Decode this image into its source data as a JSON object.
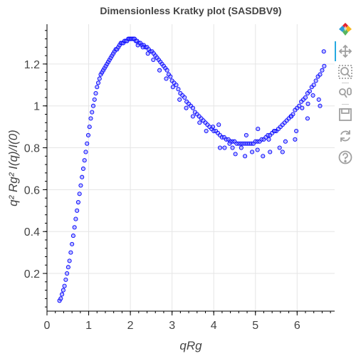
{
  "chart_data": {
    "type": "scatter",
    "title": "Dimensionless Kratky plot (SASDBV9)",
    "xlabel": "qRg",
    "ylabel": "q² Rg² I(q)/I(0)",
    "xlim": [
      0,
      6.9
    ],
    "ylim": [
      0.02,
      1.39
    ],
    "x_ticks": [
      0,
      1,
      2,
      3,
      4,
      5,
      6
    ],
    "x_tick_labels": [
      "0",
      "1",
      "2",
      "3",
      "4",
      "5",
      "6"
    ],
    "y_ticks": [
      0.2,
      0.4,
      0.6,
      0.8,
      1.0,
      1.2
    ],
    "y_tick_labels": [
      "0.2",
      "0.4",
      "0.6",
      "0.8",
      "1",
      "1.2"
    ],
    "grid": true,
    "marker": "circle",
    "marker_fill": "#7f7fff",
    "marker_stroke": "#0000ff",
    "series": [
      {
        "x": [
          0.3,
          0.33,
          0.36,
          0.39,
          0.42,
          0.45,
          0.48,
          0.51,
          0.54,
          0.57,
          0.6,
          0.63,
          0.66,
          0.69,
          0.72,
          0.75,
          0.78,
          0.81,
          0.84,
          0.87,
          0.9,
          0.93,
          0.96,
          0.99,
          1.02,
          1.05,
          1.08,
          1.11,
          1.14,
          1.17,
          1.2,
          1.23,
          1.26,
          1.29,
          1.32,
          1.35,
          1.38,
          1.41,
          1.44,
          1.47,
          1.5,
          1.53,
          1.56,
          1.59,
          1.62,
          1.65,
          1.68,
          1.71,
          1.74,
          1.77,
          1.8,
          1.83,
          1.86,
          1.89,
          1.92,
          1.95,
          1.98,
          2.01,
          2.04,
          2.07,
          2.1,
          2.13,
          2.16,
          2.2,
          2.24,
          2.28,
          2.32,
          2.36,
          2.4,
          2.44,
          2.48,
          2.52,
          2.56,
          2.6,
          2.64,
          2.68,
          2.72,
          2.76,
          2.8,
          2.84,
          2.88,
          2.92,
          2.96,
          3.0,
          3.05,
          3.1,
          3.15,
          3.2,
          3.25,
          3.3,
          3.35,
          3.4,
          3.45,
          3.5,
          3.55,
          3.6,
          3.65,
          3.7,
          3.75,
          3.8,
          3.85,
          3.9,
          3.95,
          4.0,
          4.05,
          4.1,
          4.15,
          4.2,
          4.25,
          4.3,
          4.35,
          4.4,
          4.45,
          4.5,
          4.55,
          4.6,
          4.65,
          4.7,
          4.75,
          4.8,
          4.85,
          4.9,
          4.95,
          5.0,
          5.05,
          5.1,
          5.15,
          5.2,
          5.25,
          5.3,
          5.35,
          5.4,
          5.45,
          5.5,
          5.55,
          5.6,
          5.65,
          5.7,
          5.75,
          5.8,
          5.85,
          5.9,
          5.95,
          6.0,
          6.05,
          6.1,
          6.15,
          6.2,
          6.25,
          6.3,
          6.35,
          6.4,
          6.45,
          6.5,
          6.55,
          6.6,
          6.65,
          2.18,
          2.3,
          2.42,
          2.55,
          2.7,
          2.86,
          3.02,
          3.18,
          3.34,
          3.5,
          3.66,
          3.82,
          3.98,
          4.12,
          4.26,
          4.38,
          4.52,
          4.66,
          4.78,
          4.92,
          5.06,
          5.18,
          5.32,
          5.46,
          5.58,
          5.72,
          5.86,
          5.98,
          6.12,
          6.26,
          6.38,
          6.52,
          6.64,
          4.15,
          4.45,
          4.75,
          5.05,
          5.35,
          5.65,
          5.95,
          6.25,
          6.55
        ],
        "y": [
          0.07,
          0.08,
          0.1,
          0.12,
          0.14,
          0.17,
          0.2,
          0.23,
          0.26,
          0.3,
          0.34,
          0.38,
          0.42,
          0.46,
          0.5,
          0.54,
          0.58,
          0.62,
          0.66,
          0.7,
          0.74,
          0.78,
          0.82,
          0.86,
          0.9,
          0.94,
          0.97,
          1.0,
          1.03,
          1.06,
          1.09,
          1.11,
          1.13,
          1.15,
          1.16,
          1.17,
          1.18,
          1.19,
          1.2,
          1.21,
          1.22,
          1.23,
          1.24,
          1.25,
          1.26,
          1.27,
          1.27,
          1.28,
          1.29,
          1.3,
          1.3,
          1.3,
          1.31,
          1.31,
          1.31,
          1.32,
          1.32,
          1.32,
          1.32,
          1.32,
          1.32,
          1.31,
          1.31,
          1.3,
          1.3,
          1.29,
          1.29,
          1.28,
          1.28,
          1.27,
          1.26,
          1.26,
          1.25,
          1.24,
          1.23,
          1.22,
          1.21,
          1.2,
          1.19,
          1.18,
          1.17,
          1.15,
          1.14,
          1.12,
          1.11,
          1.1,
          1.08,
          1.06,
          1.05,
          1.04,
          1.02,
          1.01,
          1.0,
          0.99,
          0.97,
          0.96,
          0.95,
          0.94,
          0.93,
          0.92,
          0.91,
          0.9,
          0.89,
          0.88,
          0.88,
          0.87,
          0.86,
          0.85,
          0.85,
          0.84,
          0.84,
          0.83,
          0.83,
          0.83,
          0.82,
          0.82,
          0.82,
          0.82,
          0.82,
          0.82,
          0.82,
          0.82,
          0.82,
          0.83,
          0.83,
          0.83,
          0.84,
          0.84,
          0.85,
          0.86,
          0.86,
          0.87,
          0.88,
          0.88,
          0.89,
          0.9,
          0.91,
          0.92,
          0.93,
          0.94,
          0.95,
          0.96,
          0.98,
          0.99,
          1.0,
          1.02,
          1.03,
          1.04,
          1.06,
          1.07,
          1.09,
          1.1,
          1.12,
          1.14,
          1.15,
          1.17,
          1.19,
          1.29,
          1.28,
          1.25,
          1.22,
          1.17,
          1.13,
          1.09,
          1.03,
          0.99,
          0.95,
          0.92,
          0.88,
          0.9,
          0.91,
          0.8,
          0.82,
          0.77,
          0.8,
          0.86,
          0.78,
          0.89,
          0.76,
          0.84,
          0.88,
          0.8,
          0.83,
          0.95,
          0.88,
          0.99,
          1.01,
          1.05,
          1.03,
          1.26,
          0.8,
          0.8,
          0.76,
          0.79,
          0.78,
          0.78,
          0.84,
          0.94,
          1.0
        ]
      }
    ]
  },
  "toolbar": {
    "tools": [
      {
        "name": "bokeh-logo-icon",
        "interactable": false
      },
      {
        "name": "pan-tool-icon",
        "interactable": true,
        "active": true
      },
      {
        "name": "box-zoom-tool-icon",
        "interactable": true
      },
      {
        "name": "wheel-zoom-tool-icon",
        "interactable": true
      },
      {
        "name": "save-tool-icon",
        "interactable": true
      },
      {
        "name": "reset-tool-icon",
        "interactable": true
      },
      {
        "name": "help-tool-icon",
        "interactable": true
      }
    ],
    "accent_color": "#26aae1",
    "icon_color": "#a0a0a0"
  }
}
